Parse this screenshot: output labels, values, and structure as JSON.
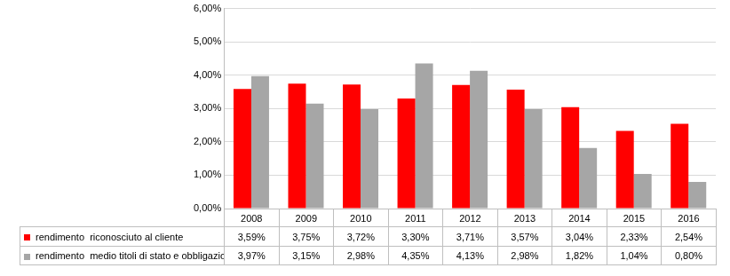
{
  "chart_data": {
    "type": "bar",
    "categories": [
      "2008",
      "2009",
      "2010",
      "2011",
      "2012",
      "2013",
      "2014",
      "2015",
      "2016"
    ],
    "series": [
      {
        "name": "rendimento  riconosciuto al cliente",
        "color": "#ff0000",
        "values": [
          3.59,
          3.75,
          3.72,
          3.3,
          3.71,
          3.57,
          3.04,
          2.33,
          2.54
        ],
        "value_labels": [
          "3,59%",
          "3,75%",
          "3,72%",
          "3,30%",
          "3,71%",
          "3,57%",
          "3,04%",
          "2,33%",
          "2,54%"
        ]
      },
      {
        "name": "rendimento  medio titoli di stato e obbligazioni",
        "color": "#a6a6a6",
        "values": [
          3.97,
          3.15,
          2.98,
          4.35,
          4.13,
          2.98,
          1.82,
          1.04,
          0.8
        ],
        "value_labels": [
          "3,97%",
          "3,15%",
          "2,98%",
          "4,35%",
          "4,13%",
          "2,98%",
          "1,82%",
          "1,04%",
          "0,80%"
        ]
      }
    ],
    "ylim": [
      0,
      6
    ],
    "yticks": [
      {
        "value": 0,
        "label": "0,00%"
      },
      {
        "value": 1,
        "label": "1,00%"
      },
      {
        "value": 2,
        "label": "2,00%"
      },
      {
        "value": 3,
        "label": "3,00%"
      },
      {
        "value": 4,
        "label": "4,00%"
      },
      {
        "value": 5,
        "label": "5,00%"
      },
      {
        "value": 6,
        "label": "6,00%"
      }
    ],
    "grid": true
  }
}
